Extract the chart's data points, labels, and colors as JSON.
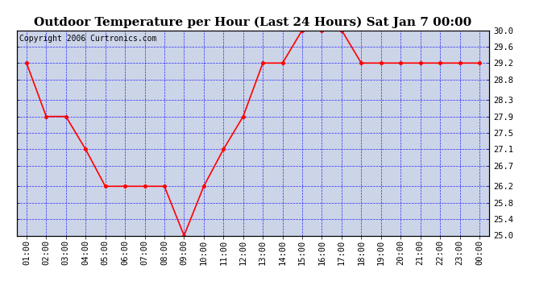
{
  "title": "Outdoor Temperature per Hour (Last 24 Hours) Sat Jan 7 00:00",
  "copyright": "Copyright 2006 Curtronics.com",
  "hours": [
    "01:00",
    "02:00",
    "03:00",
    "04:00",
    "05:00",
    "06:00",
    "07:00",
    "08:00",
    "09:00",
    "10:00",
    "11:00",
    "12:00",
    "13:00",
    "14:00",
    "15:00",
    "16:00",
    "17:00",
    "18:00",
    "19:00",
    "20:00",
    "21:00",
    "22:00",
    "23:00",
    "00:00"
  ],
  "values": [
    29.2,
    27.9,
    27.9,
    27.1,
    26.2,
    26.2,
    26.2,
    26.2,
    25.0,
    26.2,
    27.1,
    27.9,
    29.2,
    29.2,
    30.0,
    30.0,
    30.0,
    29.2,
    29.2,
    29.2,
    29.2,
    29.2,
    29.2,
    29.2
  ],
  "ylim": [
    25.0,
    30.0
  ],
  "yticks": [
    25.0,
    25.4,
    25.8,
    26.2,
    26.7,
    27.1,
    27.5,
    27.9,
    28.3,
    28.8,
    29.2,
    29.6,
    30.0
  ],
  "line_color": "red",
  "marker": "o",
  "marker_color": "red",
  "marker_size": 3,
  "fig_bg_color": "#ffffff",
  "plot_bg_color": "#ccd4e8",
  "grid_color": "blue",
  "title_fontsize": 11,
  "tick_fontsize": 7.5,
  "copyright_fontsize": 7
}
